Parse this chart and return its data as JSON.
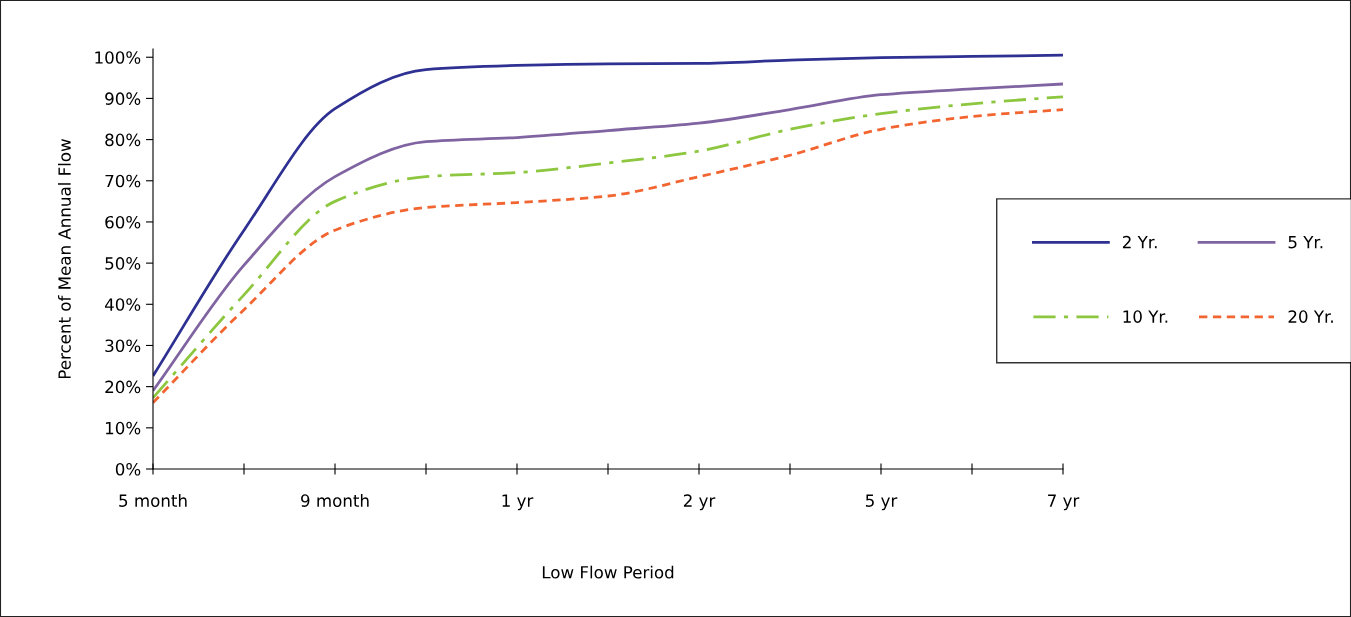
{
  "chart_data": {
    "type": "line",
    "xlabel": "Low Flow Period",
    "ylabel": "Percent of Mean Annual Flow",
    "categories": [
      "5 month",
      null,
      "9 month",
      null,
      "1 yr",
      null,
      "2 yr",
      null,
      "5 yr",
      null,
      "7 yr"
    ],
    "ylim": [
      0,
      102
    ],
    "yticks": [
      {
        "value": 0,
        "label": "0%"
      },
      {
        "value": 10,
        "label": "10%"
      },
      {
        "value": 20,
        "label": "20%"
      },
      {
        "value": 30,
        "label": "30%"
      },
      {
        "value": 40,
        "label": "40%"
      },
      {
        "value": 50,
        "label": "50%"
      },
      {
        "value": 60,
        "label": "60%"
      },
      {
        "value": 70,
        "label": "70%"
      },
      {
        "value": 80,
        "label": "80%"
      },
      {
        "value": 90,
        "label": "90%"
      },
      {
        "value": 100,
        "label": "100%"
      }
    ],
    "grid": false,
    "legend": "right",
    "marker": "none",
    "series": [
      {
        "name": "2 Yr.",
        "color": "#2e3192",
        "line_style": "solid",
        "values": [
          22.6,
          58,
          87.5,
          97,
          98,
          98.4,
          98.5,
          99.3,
          99.9,
          100.2,
          100.5
        ]
      },
      {
        "name": "5 Yr.",
        "color": "#8064a2",
        "line_style": "solid",
        "values": [
          19,
          49.5,
          71,
          79.5,
          80.5,
          82.2,
          84,
          87.3,
          90.9,
          92.3,
          93.5
        ]
      },
      {
        "name": "10 Yr.",
        "color": "#8dc63f",
        "line_style": "dashdot",
        "values": [
          17.3,
          42.3,
          65,
          71,
          72,
          74.3,
          77.2,
          82.5,
          86.3,
          88.7,
          90.4
        ]
      },
      {
        "name": "20 Yr.",
        "color": "#f26531",
        "line_style": "dashed",
        "values": [
          16.1,
          38.7,
          58,
          63.5,
          64.7,
          66.3,
          71,
          76.2,
          82.5,
          85.6,
          87.3
        ]
      }
    ]
  }
}
